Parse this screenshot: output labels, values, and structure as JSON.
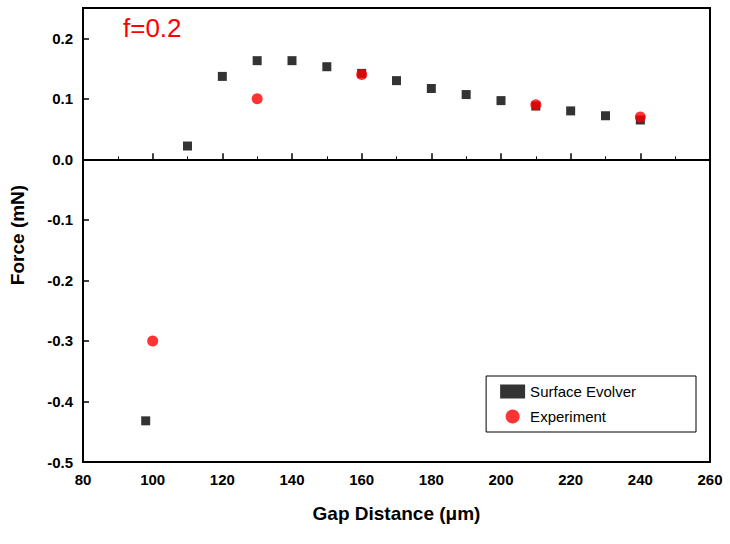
{
  "chart_data": {
    "type": "scatter",
    "annotation": "f=0.2",
    "x_label": "Gap Distance (μm)",
    "y_label": "Force (mN)",
    "xlim": [
      80,
      260
    ],
    "xticks": [
      80,
      100,
      120,
      140,
      160,
      180,
      200,
      220,
      240,
      260
    ],
    "ylim": [
      -0.5,
      0.25
    ],
    "yticks": [
      -0.5,
      -0.4,
      -0.3,
      -0.2,
      -0.1,
      {
        "value": 0,
        "label": "0.0"
      },
      0.1,
      0.2
    ],
    "grid": false,
    "legend": "lower right",
    "series": [
      {
        "name": "Surface Evolver",
        "color": "#000000",
        "marker": "square",
        "x": [
          98,
          110,
          120,
          130,
          140,
          150,
          160,
          170,
          180,
          190,
          200,
          210,
          220,
          230,
          240
        ],
        "values": [
          -0.432,
          0.022,
          0.137,
          0.163,
          0.163,
          0.153,
          0.142,
          0.13,
          0.117,
          0.107,
          0.097,
          0.088,
          0.08,
          0.072,
          0.065
        ]
      },
      {
        "name": "Experiment",
        "color": "#ff0000",
        "marker": "circle",
        "x": [
          100,
          130,
          160,
          210,
          240
        ],
        "values": [
          -0.3,
          0.1,
          0.14,
          0.09,
          0.07
        ]
      }
    ]
  }
}
